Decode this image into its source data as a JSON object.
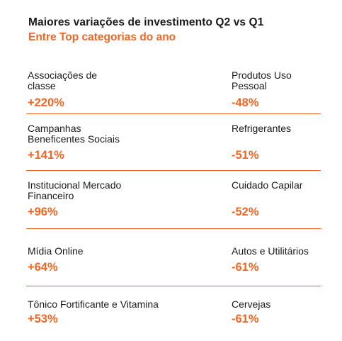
{
  "header": {
    "title": "Maiores variações de investimento Q2 vs Q1",
    "subtitle": "Entre Top categorias do ano"
  },
  "rows": [
    {
      "left": {
        "label": "Associações de classe",
        "value": "+220%"
      },
      "right": {
        "label": "Produtos Uso Pessoal",
        "value": "-48%"
      }
    },
    {
      "left": {
        "label": "Campanhas Beneficentes Sociais",
        "value": "+141%"
      },
      "right": {
        "label": "Refrigerantes",
        "value": "-51%"
      }
    },
    {
      "left": {
        "label": "Institucional Mercado Financeiro",
        "value": "+96%"
      },
      "right": {
        "label": "Cuidado Capilar",
        "value": "-52%"
      }
    },
    {
      "left": {
        "label": "Mídia Online",
        "value": "+64%"
      },
      "right": {
        "label": "Autos e Utilitários",
        "value": "-61%"
      }
    },
    {
      "left": {
        "label": "Tônico Fortificante e Vitamina",
        "value": "+53%"
      },
      "right": {
        "label": "Cervejas",
        "value": "-61%"
      }
    }
  ],
  "colors": {
    "accent": "#f26522",
    "text": "#1a1a1a",
    "background": "#ffffff"
  }
}
